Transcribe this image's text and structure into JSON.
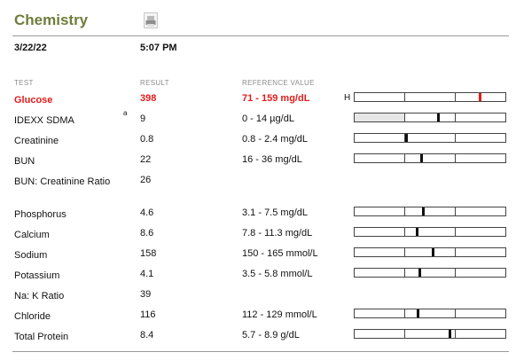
{
  "title": "Chemistry",
  "date": "3/22/22",
  "time": "5:07 PM",
  "headers": {
    "test": "TEST",
    "result": "RESULT",
    "reference": "REFERENCE VALUE"
  },
  "colors": {
    "title": "#6e7d3a",
    "abnormal": "#e21b1b"
  },
  "icons": {
    "print": "print-icon"
  },
  "rows": [
    {
      "test": "Glucose",
      "result": "398",
      "reference": "71 - 159 mg/dL",
      "flag": "H",
      "level": 0.83,
      "abnormal": true
    },
    {
      "test": "IDEXX SDMA",
      "note": "a",
      "result": "9",
      "reference": "0 - 14 µg/dL",
      "level": 0.55,
      "shade_low": true
    },
    {
      "test": "Creatinine",
      "result": "0.8",
      "reference": "0.8 - 2.4 mg/dL",
      "level": 0.34
    },
    {
      "test": "BUN",
      "result": "22",
      "reference": "16 - 36 mg/dL",
      "level": 0.44
    },
    {
      "test": "BUN: Creatinine Ratio",
      "result": "26"
    },
    {
      "test": "Phosphorus",
      "result": "4.6",
      "reference": "3.1 - 7.5 mg/dL",
      "level": 0.45
    },
    {
      "test": "Calcium",
      "result": "8.6",
      "reference": "7.8 - 11.3 mg/dL",
      "level": 0.41
    },
    {
      "test": "Sodium",
      "result": "158",
      "reference": "150 - 165 mmol/L",
      "level": 0.52
    },
    {
      "test": "Potassium",
      "result": "4.1",
      "reference": "3.5 - 5.8 mmol/L",
      "level": 0.43
    },
    {
      "test": "Na: K Ratio",
      "result": "39"
    },
    {
      "test": "Chloride",
      "result": "116",
      "reference": "112 - 129 mmol/L",
      "level": 0.42
    },
    {
      "test": "Total Protein",
      "result": "8.4",
      "reference": "5.7 - 8.9 g/dL",
      "level": 0.63
    }
  ]
}
